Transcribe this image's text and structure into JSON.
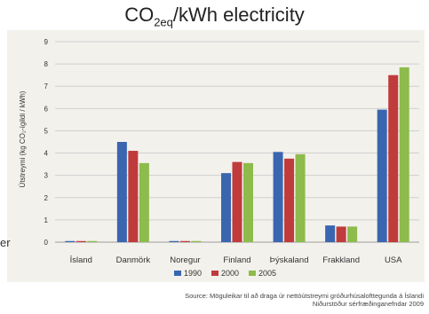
{
  "chart_data": {
    "type": "bar",
    "title_main": "CO",
    "title_sub": "2eq",
    "title_rest": "/kWh electricity",
    "ylabel": "Útstreymi (kg CO₂-ígildi / kWh)",
    "categories": [
      "Ísland",
      "Danmörk",
      "Noregur",
      "Finland",
      "Þýskaland",
      "Frakkland",
      "USA"
    ],
    "series": [
      {
        "name": "1990",
        "color": "#3a66b0",
        "values": [
          0.05,
          4.5,
          0.05,
          3.1,
          4.05,
          0.75,
          5.95
        ]
      },
      {
        "name": "2000",
        "color": "#c03b3b",
        "values": [
          0.05,
          4.1,
          0.05,
          3.6,
          3.75,
          0.7,
          7.5
        ]
      },
      {
        "name": "2005",
        "color": "#8dbb4c",
        "values": [
          0.05,
          3.55,
          0.05,
          3.55,
          3.95,
          0.7,
          7.85
        ]
      }
    ],
    "yticks": [
      "0",
      "1",
      "2",
      "3",
      "4",
      "5",
      "6",
      "7",
      "8",
      "9"
    ],
    "ylim": [
      0,
      9
    ],
    "legend_position": "bottom",
    "grid": true
  },
  "stray_text": "er",
  "source_line1": "Source: Möguleikar til að draga úr nettóútstreymi gróðurhúsalofttegunda á Íslandi",
  "source_line2": "Niðurstöður sérfræðinganefndar 2009"
}
